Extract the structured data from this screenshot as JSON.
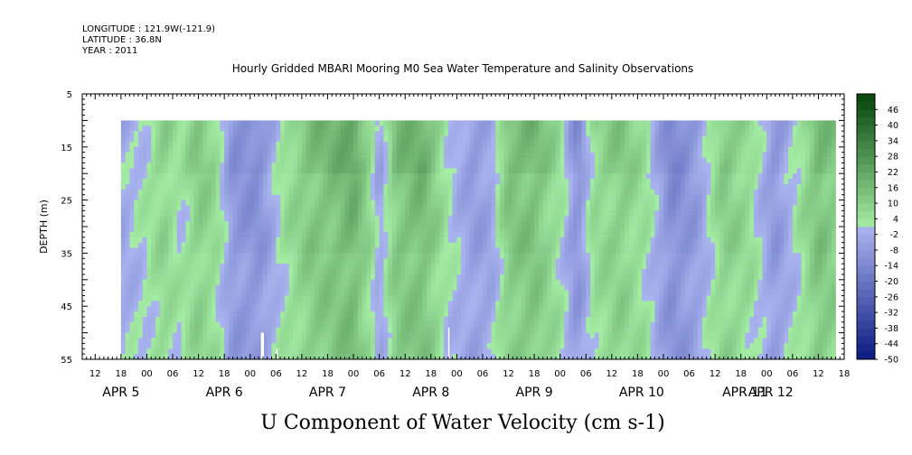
{
  "header": {
    "longitude": "LONGITUDE : 121.9W(-121.9)",
    "latitude": "LATITUDE : 36.8N",
    "year": "YEAR : 2011"
  },
  "chart_data": {
    "type": "heatmap",
    "title": "Hourly Gridded MBARI Mooring M0 Sea Water Temperature and Salinity Observations",
    "xlabel": "U Component of Water Velocity (cm s-1)",
    "ylabel": "DEPTH (m)",
    "yticks": [
      5,
      15,
      25,
      35,
      45,
      55
    ],
    "ylim": [
      5,
      55
    ],
    "y_inverted": true,
    "xlim_hours": [
      -15,
      162
    ],
    "x_hour_ticks": [
      "12",
      "18",
      "00",
      "06",
      "12",
      "18",
      "00",
      "06",
      "12",
      "18",
      "00",
      "06",
      "12",
      "18",
      "00",
      "06",
      "12",
      "18",
      "00",
      "06",
      "12",
      "18",
      "00",
      "06",
      "12",
      "18",
      "00",
      "06",
      "12",
      "18"
    ],
    "x_day_labels": [
      "APR  5",
      "APR  6",
      "APR  7",
      "APR  8",
      "APR  9",
      "APR 10",
      "APR 11",
      "APR 12"
    ],
    "data_extent": {
      "x_hours": [
        -6,
        160
      ],
      "depth_m": [
        10,
        55
      ]
    },
    "colorbar": {
      "levels": [
        -50,
        -44,
        -38,
        -32,
        -26,
        -20,
        -14,
        -8,
        -2,
        4,
        10,
        16,
        22,
        28,
        34,
        40,
        46
      ],
      "labels": [
        "46",
        "40",
        "34",
        "28",
        "22",
        "16",
        "10",
        "4",
        "-2",
        "-8",
        "-14",
        "-20",
        "-26",
        "-32",
        "-38",
        "-44",
        "-50"
      ],
      "min": -50,
      "max": 52
    },
    "colors": {
      "neg_strong": "#0a1a80",
      "neg_weak": "#a8b2ee",
      "pos_weak": "#a8f0a8",
      "pos_strong": "#0a4a10"
    },
    "u_profile_samples": [
      {
        "t": -6,
        "u": -3
      },
      {
        "t": 0,
        "u": 2
      },
      {
        "t": 4,
        "u": 8
      },
      {
        "t": 8,
        "u": 2
      },
      {
        "t": 12,
        "u": 10
      },
      {
        "t": 16,
        "u": 6
      },
      {
        "t": 20,
        "u": -8
      },
      {
        "t": 26,
        "u": -10
      },
      {
        "t": 32,
        "u": 4
      },
      {
        "t": 38,
        "u": 12
      },
      {
        "t": 44,
        "u": 14
      },
      {
        "t": 48,
        "u": 18
      },
      {
        "t": 52,
        "u": 6
      },
      {
        "t": 54,
        "u": -4
      },
      {
        "t": 58,
        "u": 12
      },
      {
        "t": 64,
        "u": 16
      },
      {
        "t": 70,
        "u": 2
      },
      {
        "t": 76,
        "u": -6
      },
      {
        "t": 80,
        "u": -4
      },
      {
        "t": 84,
        "u": 12
      },
      {
        "t": 90,
        "u": 14
      },
      {
        "t": 96,
        "u": 4
      },
      {
        "t": 100,
        "u": -10
      },
      {
        "t": 104,
        "u": 6
      },
      {
        "t": 110,
        "u": 10
      },
      {
        "t": 116,
        "u": 4
      },
      {
        "t": 122,
        "u": -12
      },
      {
        "t": 128,
        "u": -6
      },
      {
        "t": 134,
        "u": 10
      },
      {
        "t": 140,
        "u": 6
      },
      {
        "t": 146,
        "u": -8
      },
      {
        "t": 152,
        "u": 4
      },
      {
        "t": 156,
        "u": 14
      },
      {
        "t": 160,
        "u": 10
      }
    ]
  }
}
